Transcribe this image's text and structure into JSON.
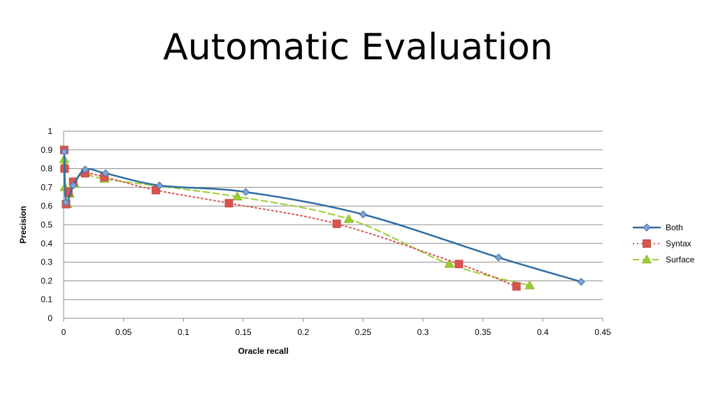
{
  "slide": {
    "title": "Automatic Evaluation"
  },
  "chart_data": {
    "type": "line",
    "title": "",
    "xlabel": "Oracle recall",
    "ylabel": "Precision",
    "xlim": [
      0,
      0.45
    ],
    "ylim": [
      0,
      1
    ],
    "x_ticks": [
      "0",
      "0.05",
      "0.1",
      "0.15",
      "0.2",
      "0.25",
      "0.3",
      "0.35",
      "0.4",
      "0.45"
    ],
    "y_ticks": [
      "0",
      "0.1",
      "0.2",
      "0.3",
      "0.4",
      "0.5",
      "0.6",
      "0.7",
      "0.8",
      "0.9",
      "1"
    ],
    "grid": "horizontal",
    "legend_position": "right",
    "series": [
      {
        "name": "Both",
        "color": "#2E6DA4",
        "line_style": "solid",
        "marker": "diamond",
        "points": [
          [
            0.0005,
            0.89
          ],
          [
            0.002,
            0.62
          ],
          [
            0.008,
            0.71
          ],
          [
            0.018,
            0.795
          ],
          [
            0.035,
            0.775
          ],
          [
            0.08,
            0.71
          ],
          [
            0.152,
            0.675
          ],
          [
            0.25,
            0.555
          ],
          [
            0.363,
            0.325
          ],
          [
            0.432,
            0.195
          ]
        ]
      },
      {
        "name": "Syntax",
        "color": "#D9534F",
        "line_style": "dotted",
        "marker": "square",
        "points": [
          [
            0.0005,
            0.9
          ],
          [
            0.0008,
            0.8
          ],
          [
            0.002,
            0.61
          ],
          [
            0.004,
            0.675
          ],
          [
            0.008,
            0.73
          ],
          [
            0.018,
            0.775
          ],
          [
            0.034,
            0.755
          ],
          [
            0.077,
            0.685
          ],
          [
            0.138,
            0.615
          ],
          [
            0.228,
            0.505
          ],
          [
            0.33,
            0.29
          ],
          [
            0.378,
            0.17
          ]
        ]
      },
      {
        "name": "Surface",
        "color": "#9ACD32",
        "line_style": "dashed",
        "marker": "triangle",
        "points": [
          [
            0.0005,
            0.85
          ],
          [
            0.0008,
            0.82
          ],
          [
            0.001,
            0.7
          ],
          [
            0.003,
            0.61
          ],
          [
            0.005,
            0.665
          ],
          [
            0.009,
            0.72
          ],
          [
            0.018,
            0.785
          ],
          [
            0.034,
            0.745
          ],
          [
            0.145,
            0.65
          ],
          [
            0.238,
            0.53
          ],
          [
            0.322,
            0.29
          ],
          [
            0.389,
            0.175
          ]
        ]
      }
    ]
  }
}
